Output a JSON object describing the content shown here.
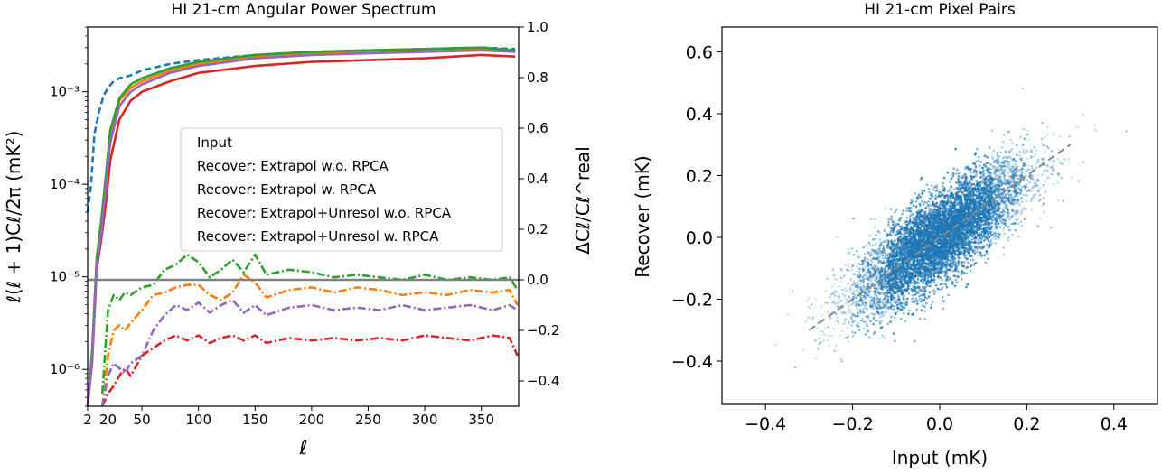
{
  "chart_data": [
    {
      "type": "line",
      "title": "HI 21-cm Angular Power Spectrum",
      "xlabel": "ℓ",
      "ylabel": "ℓ(ℓ + 1)Cℓ/2π (mK²)",
      "ylabel_right": "ΔCℓ/Cℓ^real",
      "xlim": [
        2,
        383
      ],
      "x_ticks": [
        "2",
        "20",
        "50",
        "100",
        "150",
        "200",
        "250",
        "300",
        "350"
      ],
      "ylim_left_log": [
        4e-07,
        0.005
      ],
      "y_ticks_left": [
        "10⁻³",
        "10⁻⁴",
        "10⁻⁵",
        "10⁻⁶"
      ],
      "ylim_right": [
        -0.5,
        1.0
      ],
      "y_ticks_right": [
        "1.0",
        "0.8",
        "0.6",
        "0.4",
        "0.2",
        "0.0",
        "−0.2",
        "−0.4"
      ],
      "legend_position": "center-right",
      "reference_line_right": 0.0,
      "series": [
        {
          "name": "Input",
          "color": "#1f77b4",
          "style": "dashed",
          "axis": "left",
          "x": [
            2,
            5,
            8,
            12,
            16,
            20,
            25,
            30,
            40,
            50,
            75,
            100,
            150,
            200,
            250,
            300,
            350,
            380
          ],
          "y": [
            5e-05,
            0.0001,
            0.00035,
            0.0006,
            0.0009,
            0.0011,
            0.0013,
            0.0014,
            0.0015,
            0.0017,
            0.002,
            0.0022,
            0.0025,
            0.0027,
            0.0028,
            0.0029,
            0.003,
            0.0029
          ]
        },
        {
          "name": "Recover: Extrapol w.o. RPCA",
          "color": "#ff7f0e",
          "style": "solid",
          "axis": "left",
          "x": [
            2,
            6,
            10,
            14,
            18,
            22,
            30,
            40,
            50,
            75,
            100,
            150,
            200,
            250,
            300,
            350,
            380
          ],
          "y": [
            4e-07,
            1.5e-06,
            1.5e-05,
            3.5e-05,
            0.00011,
            0.00035,
            0.0008,
            0.0011,
            0.0013,
            0.0017,
            0.002,
            0.0024,
            0.0026,
            0.0027,
            0.0028,
            0.0029,
            0.0027
          ]
        },
        {
          "name": "Recover: Extrapol w. RPCA",
          "color": "#2ca02c",
          "style": "solid",
          "axis": "left",
          "x": [
            2,
            6,
            10,
            14,
            18,
            22,
            30,
            40,
            50,
            75,
            100,
            150,
            200,
            250,
            300,
            350,
            380
          ],
          "y": [
            4e-07,
            1.6e-06,
            1.6e-05,
            4e-05,
            0.00012,
            0.00038,
            0.00085,
            0.0012,
            0.0014,
            0.0018,
            0.0021,
            0.0025,
            0.0027,
            0.0028,
            0.0029,
            0.003,
            0.0028
          ]
        },
        {
          "name": "Recover: Extrapol+Unresol w.o. RPCA",
          "color": "#d62728",
          "style": "solid",
          "axis": "left",
          "x": [
            2,
            6,
            10,
            14,
            18,
            22,
            30,
            40,
            50,
            75,
            100,
            150,
            200,
            250,
            300,
            350,
            380
          ],
          "y": [
            4e-07,
            1.2e-06,
            1.2e-05,
            2.5e-05,
            6e-05,
            0.00018,
            0.0005,
            0.0008,
            0.001,
            0.0013,
            0.0016,
            0.0019,
            0.0021,
            0.0022,
            0.0023,
            0.0025,
            0.0024
          ]
        },
        {
          "name": "Recover: Extrapol+Unresol w. RPCA",
          "color": "#9467bd",
          "style": "solid",
          "axis": "left",
          "x": [
            2,
            6,
            10,
            14,
            18,
            22,
            30,
            40,
            50,
            75,
            100,
            150,
            200,
            250,
            300,
            350,
            380
          ],
          "y": [
            4e-07,
            1.3e-06,
            1.3e-05,
            3e-05,
            9e-05,
            0.00028,
            0.0007,
            0.001,
            0.0012,
            0.0016,
            0.0019,
            0.0023,
            0.0025,
            0.0026,
            0.0027,
            0.0028,
            0.0027
          ]
        },
        {
          "name": "",
          "color": "#ff7f0e",
          "style": "dashdot",
          "axis": "right",
          "x": [
            15,
            20,
            25,
            30,
            35,
            40,
            50,
            60,
            70,
            80,
            90,
            100,
            110,
            120,
            130,
            140,
            150,
            160,
            180,
            200,
            220,
            240,
            260,
            280,
            300,
            320,
            340,
            360,
            375,
            382
          ],
          "y": [
            -0.5,
            -0.3,
            -0.2,
            -0.18,
            -0.2,
            -0.17,
            -0.12,
            -0.06,
            -0.05,
            -0.03,
            -0.02,
            -0.02,
            -0.06,
            -0.08,
            -0.05,
            0.02,
            -0.01,
            -0.07,
            -0.04,
            -0.03,
            -0.05,
            -0.03,
            -0.04,
            -0.06,
            -0.05,
            -0.06,
            -0.04,
            -0.05,
            -0.04,
            -0.1
          ]
        },
        {
          "name": "",
          "color": "#2ca02c",
          "style": "dashdot",
          "axis": "right",
          "x": [
            15,
            20,
            25,
            30,
            35,
            40,
            50,
            60,
            70,
            80,
            90,
            100,
            110,
            120,
            130,
            140,
            150,
            160,
            180,
            200,
            220,
            240,
            260,
            280,
            300,
            320,
            340,
            360,
            375,
            382
          ],
          "y": [
            -0.45,
            -0.12,
            -0.06,
            -0.08,
            -0.05,
            -0.06,
            -0.03,
            -0.02,
            0.04,
            0.06,
            0.1,
            0.07,
            0.01,
            0.04,
            0.08,
            0.03,
            0.1,
            0.02,
            0.04,
            0.03,
            0.01,
            0.02,
            0.01,
            0.0,
            0.02,
            0.0,
            0.01,
            0.0,
            0.01,
            -0.04
          ]
        },
        {
          "name": "",
          "color": "#d62728",
          "style": "dashdot",
          "axis": "right",
          "x": [
            15,
            20,
            25,
            30,
            35,
            40,
            50,
            60,
            70,
            80,
            90,
            100,
            110,
            120,
            130,
            140,
            150,
            160,
            180,
            200,
            220,
            240,
            260,
            280,
            300,
            320,
            340,
            360,
            375,
            382
          ],
          "y": [
            -0.5,
            -0.45,
            -0.42,
            -0.38,
            -0.35,
            -0.38,
            -0.3,
            -0.27,
            -0.24,
            -0.22,
            -0.24,
            -0.22,
            -0.25,
            -0.23,
            -0.22,
            -0.24,
            -0.22,
            -0.25,
            -0.23,
            -0.24,
            -0.23,
            -0.24,
            -0.23,
            -0.24,
            -0.22,
            -0.23,
            -0.24,
            -0.22,
            -0.23,
            -0.3
          ]
        },
        {
          "name": "",
          "color": "#9467bd",
          "style": "dashdot",
          "axis": "right",
          "x": [
            15,
            20,
            25,
            30,
            35,
            40,
            50,
            60,
            70,
            80,
            90,
            100,
            110,
            120,
            130,
            140,
            150,
            160,
            180,
            200,
            220,
            240,
            260,
            280,
            300,
            320,
            340,
            360,
            375,
            382
          ],
          "y": [
            -0.5,
            -0.38,
            -0.33,
            -0.35,
            -0.37,
            -0.33,
            -0.3,
            -0.2,
            -0.14,
            -0.1,
            -0.12,
            -0.09,
            -0.13,
            -0.1,
            -0.08,
            -0.13,
            -0.1,
            -0.14,
            -0.11,
            -0.1,
            -0.12,
            -0.11,
            -0.12,
            -0.1,
            -0.12,
            -0.11,
            -0.1,
            -0.12,
            -0.1,
            -0.12
          ]
        }
      ]
    },
    {
      "type": "scatter",
      "title": "HI 21-cm Pixel Pairs",
      "xlabel": "Input (mK)",
      "ylabel": "Recover (mK)",
      "xlim": [
        -0.5,
        0.5
      ],
      "ylim": [
        -0.54,
        0.68
      ],
      "x_ticks": [
        "−0.4",
        "−0.2",
        "0.0",
        "0.2",
        "0.4"
      ],
      "y_ticks": [
        "0.6",
        "0.4",
        "0.2",
        "0.0",
        "−0.2",
        "−0.4"
      ],
      "point_color": "#1f77b4",
      "point_spread": {
        "x_std": 0.1,
        "y_slope": 0.95,
        "residual_std": 0.07
      },
      "one_to_one_line": {
        "x": [
          -0.3,
          0.3
        ],
        "y": [
          -0.3,
          0.3
        ],
        "color": "#888888",
        "style": "dashed"
      }
    }
  ]
}
